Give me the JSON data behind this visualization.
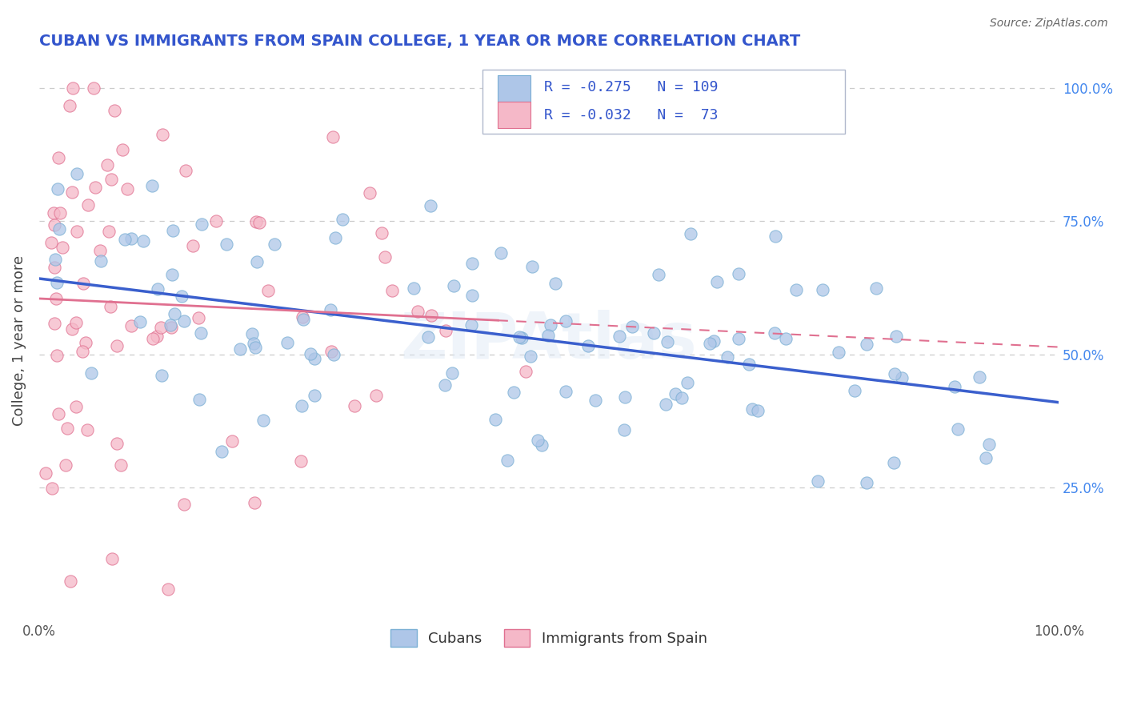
{
  "title": "CUBAN VS IMMIGRANTS FROM SPAIN COLLEGE, 1 YEAR OR MORE CORRELATION CHART",
  "source_text": "Source: ZipAtlas.com",
  "ylabel": "College, 1 year or more",
  "xlim": [
    0.0,
    1.0
  ],
  "ylim": [
    0.0,
    1.05
  ],
  "watermark": "ZIPAtlas",
  "legend": {
    "blue_R": "-0.275",
    "blue_N": "109",
    "pink_R": "-0.032",
    "pink_N": "73"
  },
  "blue_color": "#aec6e8",
  "blue_edge": "#7aafd4",
  "pink_color": "#f5b8c8",
  "pink_edge": "#e07090",
  "blue_line_color": "#3a5fcd",
  "pink_line_color": "#e07090",
  "legend_text_color": "#3355cc",
  "title_color": "#3355cc",
  "grid_color": "#cccccc",
  "background_color": "#ffffff",
  "right_tick_color": "#4488ee"
}
